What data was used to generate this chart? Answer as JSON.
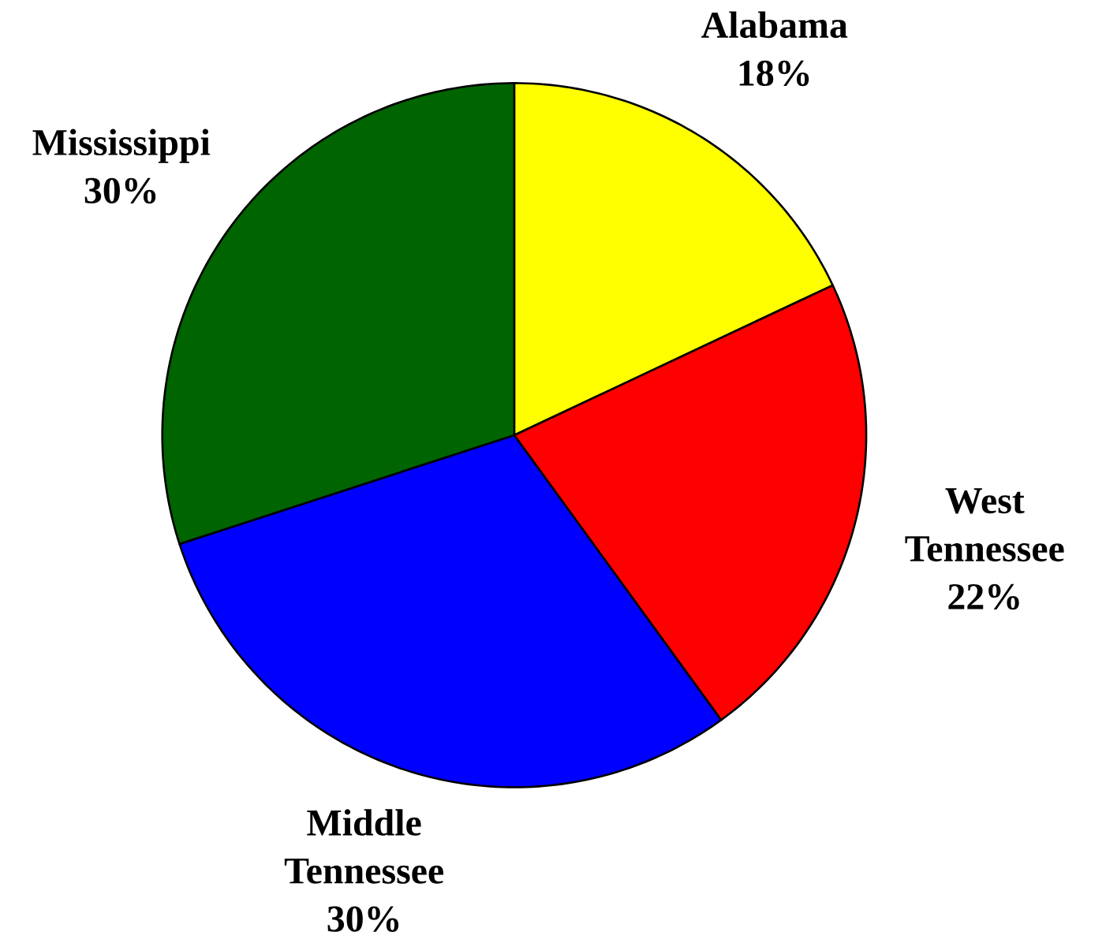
{
  "chart_data": {
    "type": "pie",
    "categories": [
      "Alabama",
      "West Tennessee",
      "Middle Tennessee",
      "Mississippi"
    ],
    "values": [
      18,
      22,
      30,
      30
    ],
    "value_labels": [
      "18%",
      "22%",
      "30%",
      "30%"
    ],
    "colors": [
      "#ffff00",
      "#ff0000",
      "#0000ff",
      "#006400"
    ]
  }
}
